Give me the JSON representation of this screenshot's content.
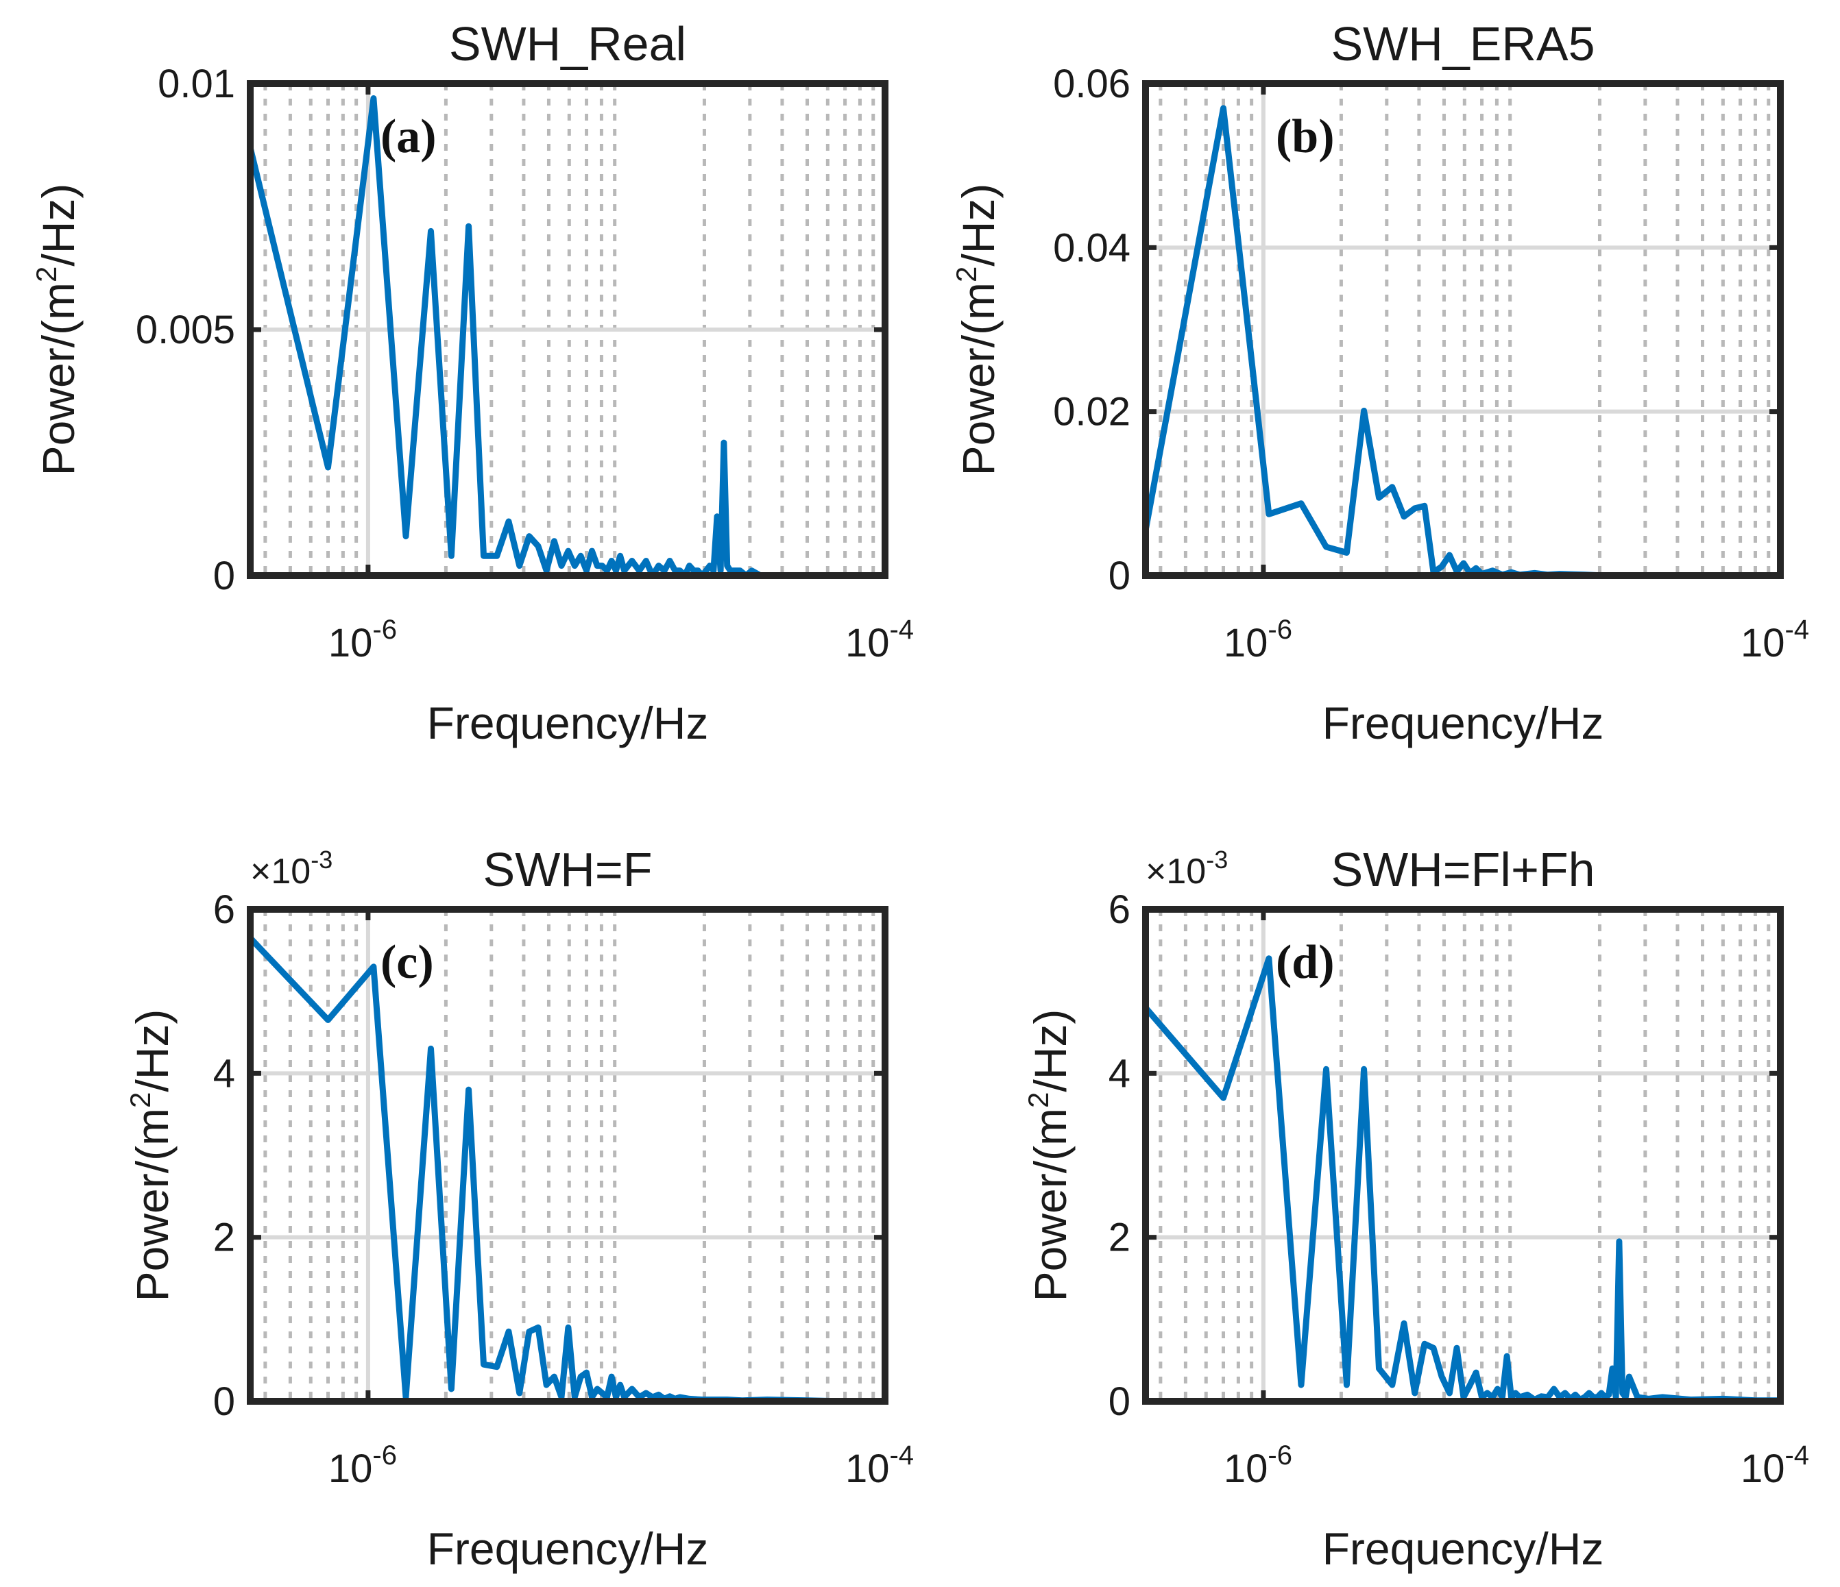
{
  "figure": {
    "series_color": "#0072BD",
    "axis_color": "#262626",
    "major_grid_color": "#d9d9d9",
    "minor_grid_color": "#b8b8b8"
  },
  "chart_data": [
    {
      "type": "line",
      "panel": "(a)",
      "title": "SWH_Real",
      "xlabel": "Frequency/Hz",
      "ylabel": {
        "prefix": "Power/(m",
        "sup": "2",
        "suffix": "/Hz)"
      },
      "xscale": "log",
      "xlim": [
        3.5e-07,
        0.0001
      ],
      "ylim": [
        0,
        0.01
      ],
      "x_ticks": [
        {
          "value": 1e-06,
          "base": "10",
          "exp": "-6"
        },
        {
          "value": 0.0001,
          "base": "10",
          "exp": "-4"
        }
      ],
      "y_ticks": [
        {
          "value": 0,
          "label": "0"
        },
        {
          "value": 0.005,
          "label": "0.005"
        },
        {
          "value": 0.01,
          "label": "0.01"
        }
      ],
      "multiplier": null,
      "x": [
        3.5e-07,
        7e-07,
        1.05e-06,
        1.4e-06,
        1.75e-06,
        2.1e-06,
        2.45e-06,
        2.8e-06,
        3.15e-06,
        3.5e-06,
        3.85e-06,
        4.2e-06,
        4.55e-06,
        4.9e-06,
        5.25e-06,
        5.6e-06,
        5.95e-06,
        6.3e-06,
        6.65e-06,
        7e-06,
        7.35e-06,
        7.7e-06,
        8.05e-06,
        8.4e-06,
        8.75e-06,
        9.1e-06,
        9.45e-06,
        9.8e-06,
        1.05e-05,
        1.12e-05,
        1.19e-05,
        1.26e-05,
        1.33e-05,
        1.4e-05,
        1.47e-05,
        1.54e-05,
        1.61e-05,
        1.68e-05,
        1.75e-05,
        1.82e-05,
        1.89e-05,
        1.96e-05,
        2.03e-05,
        2.1e-05,
        2.17e-05,
        2.24e-05,
        2.31e-05,
        2.38e-05,
        2.45e-05,
        2.52e-05,
        2.6e-05,
        2.75e-05,
        2.9e-05,
        3.05e-05,
        3.3e-05,
        3.6e-05,
        4e-05,
        5e-05,
        6.5e-05,
        8e-05,
        0.0001
      ],
      "y": [
        0.0087,
        0.0022,
        0.0097,
        0.0008,
        0.007,
        0.0004,
        0.0071,
        0.0004,
        0.0004,
        0.0011,
        0.0002,
        0.0008,
        0.0006,
        0.0001,
        0.0007,
        0.0002,
        0.0005,
        0.0002,
        0.0004,
        0.0001,
        0.0005,
        0.0002,
        0.0002,
        0.0001,
        0.0003,
        0.0001,
        0.0004,
        0.0001,
        0.0003,
        0.0001,
        0.0003,
        0.0,
        0.0002,
        0.0001,
        0.0003,
        0.0001,
        0.0001,
        0.0,
        0.0002,
        0.0001,
        0.0001,
        0.0,
        0.0001,
        0.0002,
        0.0001,
        0.0012,
        0.0001,
        0.0027,
        0.0002,
        0.0001,
        0.0001,
        0.0001,
        0.0,
        0.0001,
        0.0,
        0.0,
        0.0,
        0.0,
        0.0,
        0.0,
        0.0
      ]
    },
    {
      "type": "line",
      "panel": "(b)",
      "title": "SWH_ERA5",
      "xlabel": "Frequency/Hz",
      "ylabel": {
        "prefix": "Power/(m",
        "sup": "2",
        "suffix": "/Hz)"
      },
      "xscale": "log",
      "xlim": [
        3.5e-07,
        0.0001
      ],
      "ylim": [
        0,
        0.06
      ],
      "x_ticks": [
        {
          "value": 1e-06,
          "base": "10",
          "exp": "-6"
        },
        {
          "value": 0.0001,
          "base": "10",
          "exp": "-4"
        }
      ],
      "y_ticks": [
        {
          "value": 0,
          "label": "0"
        },
        {
          "value": 0.02,
          "label": "0.02"
        },
        {
          "value": 0.04,
          "label": "0.04"
        },
        {
          "value": 0.06,
          "label": "0.06"
        }
      ],
      "multiplier": null,
      "x": [
        3.5e-07,
        7e-07,
        1.05e-06,
        1.4e-06,
        1.75e-06,
        2.1e-06,
        2.45e-06,
        2.8e-06,
        3.15e-06,
        3.5e-06,
        3.85e-06,
        4.2e-06,
        4.55e-06,
        4.9e-06,
        5.25e-06,
        5.6e-06,
        5.95e-06,
        6.3e-06,
        6.65e-06,
        7e-06,
        7.7e-06,
        8.4e-06,
        9.1e-06,
        9.8e-06,
        1.12e-05,
        1.26e-05,
        1.4e-05,
        1.75e-05,
        2.1e-05,
        3e-05,
        5e-05,
        0.0001
      ],
      "y": [
        0.0055,
        0.057,
        0.0075,
        0.0088,
        0.0035,
        0.0028,
        0.0201,
        0.0095,
        0.0108,
        0.0072,
        0.0082,
        0.0085,
        0.0004,
        0.0011,
        0.0025,
        0.0005,
        0.0015,
        0.0003,
        0.0009,
        0.0002,
        0.0006,
        0.0001,
        0.0004,
        0.0001,
        0.0003,
        0.0001,
        0.0002,
        0.0001,
        0.0,
        0.0,
        0.0,
        0.0
      ]
    },
    {
      "type": "line",
      "panel": "(c)",
      "title": "SWH=F",
      "xlabel": "Frequency/Hz",
      "ylabel": {
        "prefix": "Power/(m",
        "sup": "2",
        "suffix": "/Hz)"
      },
      "xscale": "log",
      "xlim": [
        3.5e-07,
        0.0001
      ],
      "ylim": [
        0,
        6
      ],
      "x_ticks": [
        {
          "value": 1e-06,
          "base": "10",
          "exp": "-6"
        },
        {
          "value": 0.0001,
          "base": "10",
          "exp": "-4"
        }
      ],
      "y_ticks": [
        {
          "value": 0,
          "label": "0"
        },
        {
          "value": 2,
          "label": "2"
        },
        {
          "value": 4,
          "label": "4"
        },
        {
          "value": 6,
          "label": "6"
        }
      ],
      "multiplier": {
        "prefix": "×10",
        "exp": "-3"
      },
      "x": [
        3.5e-07,
        7e-07,
        1.05e-06,
        1.4e-06,
        1.75e-06,
        2.1e-06,
        2.45e-06,
        2.8e-06,
        3.15e-06,
        3.5e-06,
        3.85e-06,
        4.2e-06,
        4.55e-06,
        4.9e-06,
        5.25e-06,
        5.6e-06,
        5.95e-06,
        6.3e-06,
        6.65e-06,
        7e-06,
        7.35e-06,
        7.7e-06,
        8.05e-06,
        8.4e-06,
        8.75e-06,
        9.1e-06,
        9.45e-06,
        9.8e-06,
        1.05e-05,
        1.12e-05,
        1.19e-05,
        1.26e-05,
        1.33e-05,
        1.4e-05,
        1.47e-05,
        1.54e-05,
        1.61e-05,
        1.75e-05,
        1.96e-05,
        2.1e-05,
        2.45e-05,
        2.8e-05,
        3.5e-05,
        5e-05,
        7e-05,
        0.0001
      ],
      "y": [
        5.65,
        4.65,
        5.3,
        0.05,
        4.3,
        0.15,
        3.8,
        0.45,
        0.42,
        0.85,
        0.1,
        0.85,
        0.9,
        0.2,
        0.3,
        0.05,
        0.9,
        0.05,
        0.3,
        0.35,
        0.05,
        0.15,
        0.1,
        0.05,
        0.3,
        0.05,
        0.2,
        0.05,
        0.15,
        0.05,
        0.1,
        0.05,
        0.08,
        0.03,
        0.06,
        0.03,
        0.05,
        0.03,
        0.02,
        0.02,
        0.02,
        0.01,
        0.02,
        0.01,
        0.0,
        0.0
      ]
    },
    {
      "type": "line",
      "panel": "(d)",
      "title": "SWH=Fl+Fh",
      "xlabel": "Frequency/Hz",
      "ylabel": {
        "prefix": "Power/(m",
        "sup": "2",
        "suffix": "/Hz)"
      },
      "xscale": "log",
      "xlim": [
        3.5e-07,
        0.0001
      ],
      "ylim": [
        0,
        6
      ],
      "x_ticks": [
        {
          "value": 1e-06,
          "base": "10",
          "exp": "-6"
        },
        {
          "value": 0.0001,
          "base": "10",
          "exp": "-4"
        }
      ],
      "y_ticks": [
        {
          "value": 0,
          "label": "0"
        },
        {
          "value": 2,
          "label": "2"
        },
        {
          "value": 4,
          "label": "4"
        },
        {
          "value": 6,
          "label": "6"
        }
      ],
      "multiplier": {
        "prefix": "×10",
        "exp": "-3"
      },
      "x": [
        3.5e-07,
        7e-07,
        1.05e-06,
        1.4e-06,
        1.75e-06,
        2.1e-06,
        2.45e-06,
        2.8e-06,
        3.15e-06,
        3.5e-06,
        3.85e-06,
        4.2e-06,
        4.55e-06,
        4.9e-06,
        5.25e-06,
        5.6e-06,
        5.95e-06,
        6.3e-06,
        6.65e-06,
        7e-06,
        7.35e-06,
        7.7e-06,
        8.05e-06,
        8.4e-06,
        8.75e-06,
        9.1e-06,
        9.45e-06,
        9.8e-06,
        1.05e-05,
        1.12e-05,
        1.19e-05,
        1.26e-05,
        1.33e-05,
        1.4e-05,
        1.47e-05,
        1.54e-05,
        1.61e-05,
        1.68e-05,
        1.75e-05,
        1.82e-05,
        1.89e-05,
        1.96e-05,
        2.03e-05,
        2.1e-05,
        2.17e-05,
        2.24e-05,
        2.31e-05,
        2.38e-05,
        2.45e-05,
        2.52e-05,
        2.6e-05,
        2.8e-05,
        3.1e-05,
        3.5e-05,
        4.5e-05,
        6e-05,
        8e-05,
        0.0001
      ],
      "y": [
        4.8,
        3.7,
        5.4,
        0.2,
        4.05,
        0.2,
        4.05,
        0.4,
        0.2,
        0.95,
        0.1,
        0.7,
        0.65,
        0.3,
        0.1,
        0.65,
        0.05,
        0.2,
        0.35,
        0.05,
        0.1,
        0.05,
        0.15,
        0.05,
        0.55,
        0.05,
        0.1,
        0.05,
        0.08,
        0.02,
        0.06,
        0.05,
        0.15,
        0.05,
        0.1,
        0.03,
        0.08,
        0.02,
        0.05,
        0.1,
        0.05,
        0.05,
        0.1,
        0.05,
        0.08,
        0.4,
        0.05,
        1.95,
        0.1,
        0.05,
        0.3,
        0.05,
        0.03,
        0.05,
        0.02,
        0.03,
        0.01,
        0.01
      ]
    }
  ]
}
